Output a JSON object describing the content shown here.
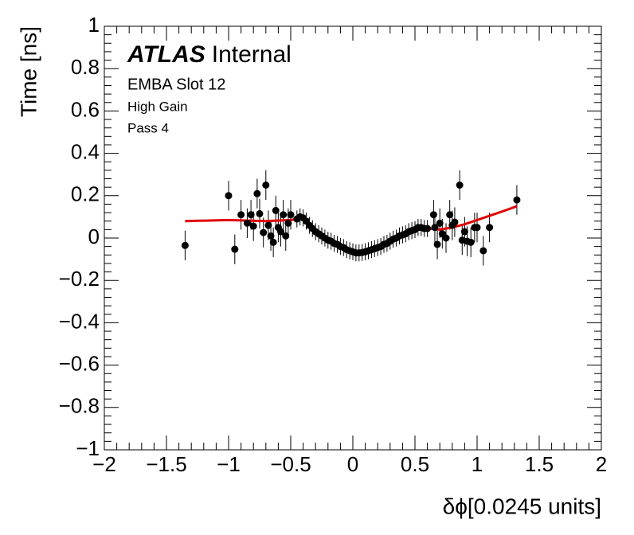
{
  "chart_data": {
    "type": "scatter",
    "experiment": "ATLAS",
    "status": "Internal",
    "annotations": [
      "EMBA Slot 12",
      "High Gain",
      "Pass 4"
    ],
    "x_label": "δϕ[0.0245 units]",
    "y_label": "Time [ns]",
    "color": "#000000",
    "x": [
      -1.35,
      -1.0,
      -0.95,
      -0.9,
      -0.85,
      -0.82,
      -0.8,
      -0.77,
      -0.75,
      -0.72,
      -0.7,
      -0.68,
      -0.66,
      -0.64,
      -0.62,
      -0.6,
      -0.58,
      -0.56,
      -0.54,
      -0.52,
      -0.5,
      -0.45,
      -0.425,
      -0.4,
      -0.375,
      -0.35,
      -0.325,
      -0.3,
      -0.275,
      -0.25,
      -0.225,
      -0.2,
      -0.175,
      -0.15,
      -0.125,
      -0.1,
      -0.075,
      -0.05,
      -0.025,
      0,
      0.025,
      0.05,
      0.075,
      0.1,
      0.125,
      0.15,
      0.175,
      0.2,
      0.225,
      0.25,
      0.275,
      0.3,
      0.325,
      0.35,
      0.375,
      0.4,
      0.425,
      0.45,
      0.475,
      0.5,
      0.525,
      0.55,
      0.575,
      0.6,
      0.65,
      0.66,
      0.68,
      0.7,
      0.72,
      0.75,
      0.78,
      0.8,
      0.82,
      0.86,
      0.88,
      0.9,
      0.92,
      0.95,
      0.98,
      1.0,
      1.05,
      1.1,
      1.32
    ],
    "values": [
      -0.035,
      0.2,
      -0.053,
      0.11,
      0.07,
      0.11,
      0.056,
      0.21,
      0.115,
      0.026,
      0.25,
      0.06,
      0.01,
      -0.02,
      0.13,
      0.05,
      0.03,
      0.11,
      0.01,
      0.07,
      0.11,
      0.09,
      0.1,
      0.095,
      0.08,
      0.06,
      0.045,
      0.03,
      0.02,
      0.01,
      0.0,
      -0.01,
      -0.015,
      -0.025,
      -0.03,
      -0.04,
      -0.045,
      -0.055,
      -0.06,
      -0.065,
      -0.07,
      -0.07,
      -0.068,
      -0.065,
      -0.06,
      -0.055,
      -0.05,
      -0.045,
      -0.04,
      -0.03,
      -0.025,
      -0.015,
      -0.005,
      0.0,
      0.01,
      0.015,
      0.02,
      0.03,
      0.035,
      0.04,
      0.05,
      0.05,
      0.045,
      0.045,
      0.11,
      0.05,
      -0.03,
      0.07,
      0.02,
      0.0,
      0.11,
      0.06,
      0.075,
      0.25,
      -0.01,
      0.03,
      -0.015,
      -0.02,
      0.05,
      0.05,
      -0.06,
      0.05,
      0.18
    ],
    "errors": [
      0.07,
      0.07,
      0.07,
      0.07,
      0.07,
      0.07,
      0.07,
      0.07,
      0.07,
      0.07,
      0.07,
      0.07,
      0.07,
      0.07,
      0.07,
      0.07,
      0.07,
      0.07,
      0.07,
      0.07,
      0.07,
      0.04,
      0.04,
      0.04,
      0.04,
      0.04,
      0.04,
      0.04,
      0.04,
      0.04,
      0.04,
      0.04,
      0.04,
      0.04,
      0.04,
      0.04,
      0.04,
      0.04,
      0.04,
      0.04,
      0.04,
      0.04,
      0.04,
      0.04,
      0.04,
      0.04,
      0.04,
      0.04,
      0.04,
      0.04,
      0.04,
      0.04,
      0.04,
      0.04,
      0.04,
      0.04,
      0.04,
      0.04,
      0.04,
      0.04,
      0.04,
      0.04,
      0.04,
      0.04,
      0.07,
      0.07,
      0.07,
      0.07,
      0.07,
      0.07,
      0.07,
      0.07,
      0.07,
      0.07,
      0.07,
      0.07,
      0.07,
      0.07,
      0.07,
      0.07,
      0.07,
      0.07,
      0.07
    ],
    "fit": {
      "color": "#e00000",
      "x": [
        -1.35,
        -1.0,
        -0.7,
        -0.5,
        -0.45,
        -0.4,
        -0.35,
        -0.3,
        -0.2,
        -0.1,
        0,
        0.05,
        0.1,
        0.2,
        0.3,
        0.4,
        0.5,
        0.55,
        0.6,
        0.7,
        0.8,
        0.9,
        1.0,
        1.1,
        1.2,
        1.32
      ],
      "values": [
        0.08,
        0.085,
        0.08,
        0.085,
        0.09,
        0.095,
        0.065,
        0.03,
        -0.01,
        -0.04,
        -0.065,
        -0.07,
        -0.065,
        -0.045,
        -0.015,
        0.015,
        0.04,
        0.05,
        0.045,
        0.04,
        0.05,
        0.065,
        0.085,
        0.105,
        0.125,
        0.15
      ]
    },
    "xlim": [
      -2,
      2
    ],
    "xticks": [
      {
        "value": -2,
        "label": "−2"
      },
      {
        "value": -1.5,
        "label": "−1.5"
      },
      {
        "value": -1,
        "label": "−1"
      },
      {
        "value": -0.5,
        "label": "−0.5"
      },
      0,
      0.5,
      1,
      1.5,
      2
    ],
    "ylim": [
      -1,
      1
    ],
    "yticks": [
      {
        "value": -1,
        "label": "−1"
      },
      {
        "value": -0.8,
        "label": "−0.8"
      },
      {
        "value": -0.6,
        "label": "−0.6"
      },
      {
        "value": -0.4,
        "label": "−0.4"
      },
      {
        "value": -0.2,
        "label": "−0.2"
      },
      0,
      0.2,
      0.4,
      0.6,
      0.8,
      1
    ]
  }
}
